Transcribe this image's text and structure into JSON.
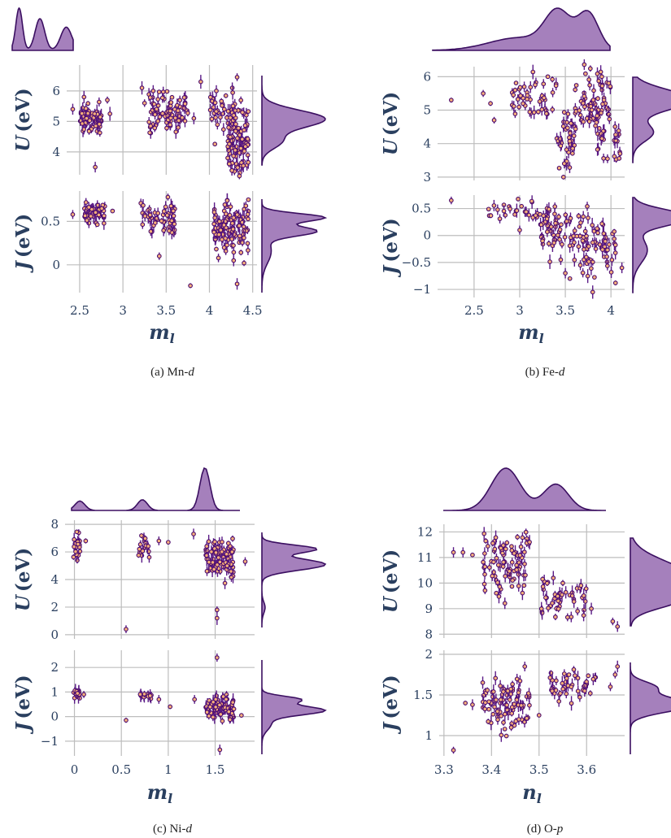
{
  "chart_data": [
    {
      "type": "scatter",
      "caption": "(a) Mn-d",
      "xlabel": "m",
      "xlabel_sub": "l",
      "xlim": [
        2.35,
        4.55
      ],
      "xticks": [
        2.5,
        3,
        3.5,
        4,
        4.5
      ],
      "xtick_labels": [
        "2.5",
        "3",
        "3.5",
        "4",
        "4.5"
      ],
      "top": {
        "ylabel": "U",
        "ylabel_unit": "(eV)",
        "ylim": [
          3.25,
          6.85
        ],
        "yticks": [
          4,
          5,
          6
        ],
        "ytick_labels": [
          "4",
          "5",
          "6"
        ],
        "clusters": [
          {
            "x": [
              2.5,
              2.75
            ],
            "y": [
              4.7,
              5.45
            ],
            "n": 70
          },
          {
            "x": [
              3.3,
              3.75
            ],
            "y": [
              4.8,
              5.8
            ],
            "n": 80
          },
          {
            "x": [
              4.2,
              4.45
            ],
            "y": [
              3.6,
              5.2
            ],
            "n": 110
          },
          {
            "x": [
              4.0,
              4.3
            ],
            "y": [
              4.8,
              6.2
            ],
            "n": 30
          }
        ],
        "points": [
          [
            2.42,
            5.4
          ],
          [
            2.68,
            3.5
          ],
          [
            2.82,
            5.7
          ],
          [
            2.55,
            5.8
          ],
          [
            3.22,
            6.1
          ],
          [
            3.25,
            5.6
          ],
          [
            3.35,
            6.0
          ],
          [
            3.9,
            6.3
          ],
          [
            3.82,
            5.1
          ],
          [
            4.32,
            6.45
          ],
          [
            3.32,
            4.85
          ],
          [
            4.08,
            6.0
          ],
          [
            2.85,
            5.25
          ]
        ]
      },
      "bottom": {
        "ylabel": "J",
        "ylabel_unit": "(eV)",
        "ylim": [
          -0.32,
          0.85
        ],
        "yticks": [
          0,
          0.5
        ],
        "ytick_labels": [
          "0",
          "0.5"
        ],
        "clusters": [
          {
            "x": [
              2.55,
              2.8
            ],
            "y": [
              0.52,
              0.7
            ],
            "n": 55
          },
          {
            "x": [
              3.2,
              3.6
            ],
            "y": [
              0.4,
              0.65
            ],
            "n": 55
          },
          {
            "x": [
              4.05,
              4.45
            ],
            "y": [
              0.2,
              0.65
            ],
            "n": 110
          }
        ],
        "points": [
          [
            2.42,
            0.58
          ],
          [
            2.88,
            0.62
          ],
          [
            3.42,
            0.1
          ],
          [
            3.78,
            -0.24
          ],
          [
            4.32,
            -0.22
          ],
          [
            4.45,
            0.75
          ],
          [
            3.52,
            0.78
          ],
          [
            4.28,
            0.05
          ],
          [
            4.4,
            0.02
          ]
        ]
      },
      "top_density": {
        "modes": [
          [
            2.6,
            0.2,
            0.55
          ],
          [
            3.55,
            0.17,
            0.75
          ],
          [
            4.3,
            0.12,
            1.0
          ]
        ]
      },
      "right_density_top": {
        "modes": [
          [
            5.1,
            0.35,
            1.0
          ],
          [
            4.2,
            0.3,
            0.3
          ]
        ]
      },
      "right_density_bottom": {
        "modes": [
          [
            0.62,
            0.05,
            1.0
          ],
          [
            0.45,
            0.06,
            0.85
          ],
          [
            0.2,
            0.15,
            0.15
          ]
        ]
      }
    },
    {
      "type": "scatter",
      "caption": "(b) Fe-d",
      "xlabel": "m",
      "xlabel_sub": "l",
      "xlim": [
        2.1,
        4.15
      ],
      "xticks": [
        2.5,
        3,
        3.5,
        4
      ],
      "xtick_labels": [
        "2.5",
        "3",
        "3.5",
        "4"
      ],
      "top": {
        "ylabel": "U",
        "ylabel_unit": "(eV)",
        "ylim": [
          2.9,
          6.3
        ],
        "yticks": [
          3,
          4,
          5,
          6
        ],
        "ytick_labels": [
          "3",
          "4",
          "5",
          "6"
        ],
        "clusters": [
          {
            "x": [
              2.9,
              3.4
            ],
            "y": [
              4.8,
              5.8
            ],
            "n": 45
          },
          {
            "x": [
              3.4,
              3.6
            ],
            "y": [
              3.4,
              4.8
            ],
            "n": 35
          },
          {
            "x": [
              3.6,
              4.0
            ],
            "y": [
              4.5,
              5.9
            ],
            "n": 70
          },
          {
            "x": [
              3.85,
              4.1
            ],
            "y": [
              3.7,
              4.6
            ],
            "n": 25
          }
        ],
        "points": [
          [
            2.25,
            5.3
          ],
          [
            2.6,
            5.5
          ],
          [
            2.72,
            4.7
          ],
          [
            2.95,
            5.6
          ],
          [
            3.05,
            5.7
          ],
          [
            3.9,
            6.0
          ],
          [
            4.1,
            3.7
          ],
          [
            3.48,
            3.0
          ],
          [
            2.68,
            5.2
          ]
        ]
      },
      "bottom": {
        "ylabel": "J",
        "ylabel_unit": "(eV)",
        "ylim": [
          -1.15,
          0.75
        ],
        "yticks": [
          -1,
          -0.5,
          0,
          0.5
        ],
        "ytick_labels": [
          "−1",
          "−0.5",
          "0",
          "0.5"
        ],
        "clusters": [
          {
            "x": [
              2.6,
              3.2
            ],
            "y": [
              0.35,
              0.6
            ],
            "n": 25
          },
          {
            "x": [
              3.2,
              3.6
            ],
            "y": [
              -0.2,
              0.5
            ],
            "n": 55
          },
          {
            "x": [
              3.6,
              4.05
            ],
            "y": [
              -0.6,
              0.3
            ],
            "n": 70
          }
        ],
        "points": [
          [
            2.25,
            0.65
          ],
          [
            3.5,
            -0.7
          ],
          [
            3.55,
            -0.8
          ],
          [
            3.8,
            -1.05
          ],
          [
            4.12,
            -0.6
          ],
          [
            4.05,
            -0.88
          ],
          [
            3.45,
            -0.45
          ],
          [
            3.0,
            0.1
          ],
          [
            3.25,
            -0.1
          ]
        ]
      },
      "top_density": {
        "modes": [
          [
            3.55,
            0.15,
            1.0
          ],
          [
            3.9,
            0.12,
            1.0
          ],
          [
            3.1,
            0.35,
            0.35
          ]
        ]
      },
      "right_density_top": {
        "modes": [
          [
            5.4,
            0.4,
            1.0
          ],
          [
            4.1,
            0.35,
            0.35
          ]
        ]
      },
      "right_density_bottom": {
        "modes": [
          [
            0.35,
            0.15,
            1.0
          ],
          [
            -0.3,
            0.25,
            0.25
          ]
        ]
      }
    },
    {
      "type": "scatter",
      "caption": "(c) Ni-d",
      "xlabel": "m",
      "xlabel_sub": "l",
      "xlim": [
        -0.1,
        1.92
      ],
      "xticks": [
        0,
        0.5,
        1,
        1.5
      ],
      "xtick_labels": [
        "0",
        "0.5",
        "1",
        "1.5"
      ],
      "top": {
        "ylabel": "U",
        "ylabel_unit": "(eV)",
        "ylim": [
          -0.3,
          8.3
        ],
        "yticks": [
          0,
          2,
          4,
          6,
          8
        ],
        "ytick_labels": [
          "0",
          "2",
          "4",
          "6",
          "8"
        ],
        "clusters": [
          {
            "x": [
              -0.01,
              0.06
            ],
            "y": [
              5.8,
              7.0
            ],
            "n": 20
          },
          {
            "x": [
              0.68,
              0.8
            ],
            "y": [
              5.8,
              7.0
            ],
            "n": 20
          },
          {
            "x": [
              1.4,
              1.72
            ],
            "y": [
              4.4,
              6.6
            ],
            "n": 95
          }
        ],
        "points": [
          [
            0.55,
            0.4
          ],
          [
            1.52,
            1.2
          ],
          [
            1.52,
            1.8
          ],
          [
            1.0,
            6.7
          ],
          [
            1.27,
            7.3
          ],
          [
            0.9,
            6.8
          ],
          [
            1.82,
            5.3
          ],
          [
            0.12,
            6.8
          ],
          [
            1.68,
            6.0
          ]
        ]
      },
      "bottom": {
        "ylabel": "J",
        "ylabel_unit": "(eV)",
        "ylim": [
          -1.6,
          2.7
        ],
        "yticks": [
          -1,
          0,
          1,
          2
        ],
        "ytick_labels": [
          "−1",
          "0",
          "1",
          "2"
        ],
        "clusters": [
          {
            "x": [
              -0.01,
              0.06
            ],
            "y": [
              0.7,
              1.1
            ],
            "n": 15
          },
          {
            "x": [
              0.7,
              0.82
            ],
            "y": [
              0.75,
              0.95
            ],
            "n": 15
          },
          {
            "x": [
              1.4,
              1.7
            ],
            "y": [
              0.0,
              0.7
            ],
            "n": 95
          }
        ],
        "points": [
          [
            0.55,
            -0.15
          ],
          [
            1.52,
            2.4
          ],
          [
            1.55,
            -1.35
          ],
          [
            1.78,
            0.05
          ],
          [
            0.1,
            0.9
          ],
          [
            1.02,
            0.4
          ],
          [
            0.9,
            0.7
          ],
          [
            1.28,
            0.7
          ]
        ]
      },
      "top_density": {
        "modes": [
          [
            0.0,
            0.06,
            0.22
          ],
          [
            0.75,
            0.06,
            0.25
          ],
          [
            1.5,
            0.06,
            1.0
          ]
        ]
      },
      "right_density_top": {
        "modes": [
          [
            6.8,
            0.35,
            0.85
          ],
          [
            5.4,
            0.5,
            1.0
          ],
          [
            1.5,
            0.5,
            0.05
          ]
        ]
      },
      "right_density_bottom": {
        "modes": [
          [
            0.4,
            0.2,
            1.0
          ],
          [
            0.9,
            0.15,
            0.6
          ],
          [
            -0.2,
            0.3,
            0.15
          ]
        ]
      }
    },
    {
      "type": "scatter",
      "caption": "(d) O-p",
      "xlabel": "n",
      "xlabel_sub": "l",
      "xlim": [
        3.29,
        3.68
      ],
      "xticks": [
        3.3,
        3.4,
        3.5,
        3.6
      ],
      "xtick_labels": [
        "3.3",
        "3.4",
        "3.5",
        "3.6"
      ],
      "top": {
        "ylabel": "U",
        "ylabel_unit": "(eV)",
        "ylim": [
          7.85,
          12.3
        ],
        "yticks": [
          8,
          9,
          10,
          11,
          12
        ],
        "ytick_labels": [
          "8",
          "9",
          "10",
          "11",
          "12"
        ],
        "clusters": [
          {
            "x": [
              3.38,
              3.48
            ],
            "y": [
              9.8,
              11.7
            ],
            "n": 90
          },
          {
            "x": [
              3.5,
              3.6
            ],
            "y": [
              8.9,
              9.9
            ],
            "n": 45
          }
        ],
        "points": [
          [
            3.32,
            11.2
          ],
          [
            3.34,
            11.2
          ],
          [
            3.36,
            11.1
          ],
          [
            3.655,
            8.5
          ],
          [
            3.665,
            8.3
          ],
          [
            3.61,
            9.0
          ],
          [
            3.48,
            11.6
          ],
          [
            3.53,
            10.2
          ],
          [
            3.55,
            10.0
          ]
        ]
      },
      "bottom": {
        "ylabel": "J",
        "ylabel_unit": "(eV)",
        "ylim": [
          0.75,
          2.05
        ],
        "yticks": [
          1,
          1.5,
          2
        ],
        "ytick_labels": [
          "1",
          "1.5",
          "2"
        ],
        "clusters": [
          {
            "x": [
              3.38,
              3.48
            ],
            "y": [
              1.15,
              1.6
            ],
            "n": 90
          },
          {
            "x": [
              3.52,
              3.62
            ],
            "y": [
              1.45,
              1.75
            ],
            "n": 45
          }
        ],
        "points": [
          [
            3.32,
            0.82
          ],
          [
            3.345,
            1.4
          ],
          [
            3.36,
            1.38
          ],
          [
            3.66,
            1.75
          ],
          [
            3.665,
            1.85
          ],
          [
            3.65,
            1.6
          ],
          [
            3.47,
            1.85
          ],
          [
            3.5,
            1.25
          ]
        ]
      },
      "top_density": {
        "modes": [
          [
            3.44,
            0.035,
            1.0
          ],
          [
            3.56,
            0.03,
            0.62
          ]
        ]
      },
      "right_density_top": {
        "modes": [
          [
            10.3,
            0.8,
            1.0
          ],
          [
            9.1,
            0.4,
            0.5
          ]
        ]
      },
      "right_density_bottom": {
        "modes": [
          [
            1.45,
            0.1,
            1.0
          ],
          [
            1.7,
            0.08,
            0.4
          ]
        ]
      }
    }
  ]
}
